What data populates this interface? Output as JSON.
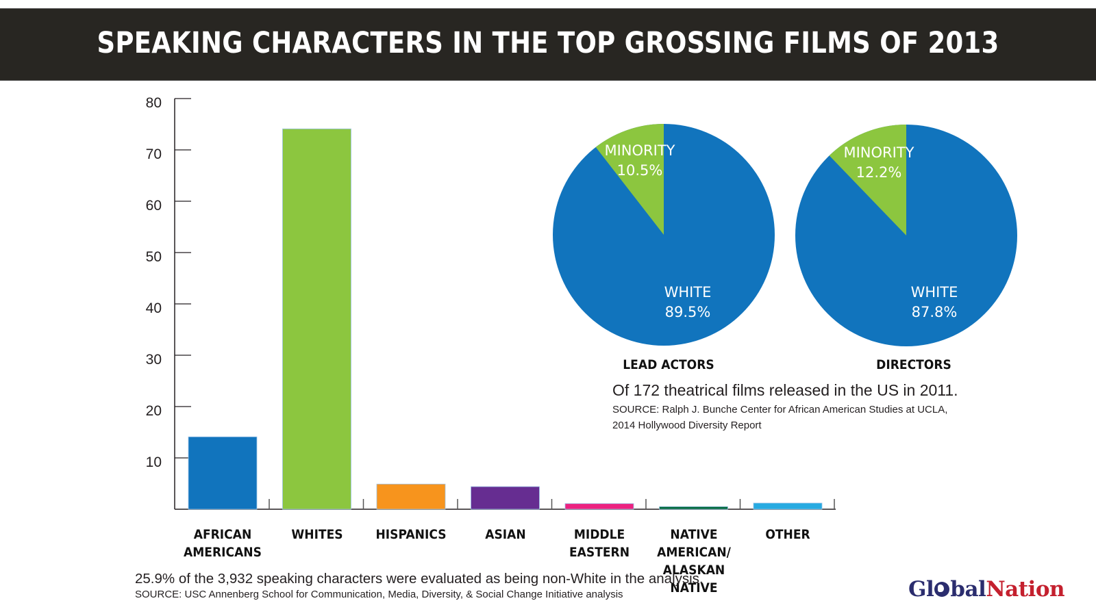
{
  "header": {
    "title": "SPEAKING CHARACTERS IN THE TOP GROSSING FILMS OF 2013"
  },
  "colors": {
    "header_bg": "#282622",
    "african_americans": "#1174bd",
    "whites": "#8cc63f",
    "hispanics": "#f7941d",
    "asian": "#662d91",
    "middle_eastern": "#ec2280",
    "native": "#006838",
    "other": "#27aae1",
    "pie_white": "#1174bd",
    "pie_minority": "#8cc63f",
    "logo_global": "#2b2d6e",
    "logo_nation": "#c4202e"
  },
  "bar_chart": {
    "yticks": [
      "80",
      "70",
      "60",
      "50",
      "40",
      "30",
      "20",
      "10"
    ],
    "categories": [
      {
        "line1": "AFRICAN",
        "line2": "AMERICANS"
      },
      {
        "line1": "WHITES",
        "line2": ""
      },
      {
        "line1": "HISPANICS",
        "line2": ""
      },
      {
        "line1": "ASIAN",
        "line2": ""
      },
      {
        "line1": "MIDDLE",
        "line2": "EASTERN"
      },
      {
        "line1": "NATIVE AMERICAN/",
        "line2": "ALASKAN NATIVE"
      },
      {
        "line1": "OTHER",
        "line2": ""
      }
    ],
    "note": "25.9% of the 3,932 speaking characters were evaluated as being non-White in the analysis.",
    "source": "SOURCE: USC Annenberg School for Communication, Media, Diversity, & Social Change Initiative analysis"
  },
  "pies": {
    "lead_actors": {
      "title": "LEAD ACTORS",
      "minority_label": "MINORITY",
      "minority_value": "10.5%",
      "white_label": "WHITE",
      "white_value": "89.5%"
    },
    "directors": {
      "title": "DIRECTORS",
      "minority_label": "MINORITY",
      "minority_value": "12.2%",
      "white_label": "WHITE",
      "white_value": "87.8%"
    },
    "note": "Of 172 theatrical films released in the US in 2011.",
    "source_line1": "SOURCE: Ralph J. Bunche Center for African American Studies at UCLA,",
    "source_line2": "2014 Hollywood Diversity Report"
  },
  "logo": {
    "part1": "Gl",
    "part2": "bal",
    "part3": "Nation"
  },
  "chart_data": [
    {
      "type": "bar",
      "title": "SPEAKING CHARACTERS IN THE TOP GROSSING FILMS OF 2013",
      "categories": [
        "African Americans",
        "Whites",
        "Hispanics",
        "Asian",
        "Middle Eastern",
        "Native American/Alaskan Native",
        "Other"
      ],
      "values": [
        14.1,
        74.1,
        4.9,
        4.4,
        1.1,
        0.5,
        1.2
      ],
      "xlabel": "",
      "ylabel": "",
      "ylim": [
        0,
        80
      ],
      "yticks": [
        10,
        20,
        30,
        40,
        50,
        60,
        70,
        80
      ],
      "grid": false,
      "annotations": [
        "25.9% of the 3,932 speaking characters were evaluated as being non-White in the analysis.",
        "SOURCE: USC Annenberg School for Communication, Media, Diversity, & Social Change Initiative analysis"
      ]
    },
    {
      "type": "pie",
      "title": "LEAD ACTORS",
      "labels": [
        "White",
        "Minority"
      ],
      "values": [
        89.5,
        10.5
      ]
    },
    {
      "type": "pie",
      "title": "DIRECTORS",
      "labels": [
        "White",
        "Minority"
      ],
      "values": [
        87.8,
        12.2
      ],
      "annotations": [
        "Of 172 theatrical films released in the US in 2011.",
        "SOURCE: Ralph J. Bunche Center for African American Studies at UCLA, 2014 Hollywood Diversity Report"
      ]
    }
  ]
}
